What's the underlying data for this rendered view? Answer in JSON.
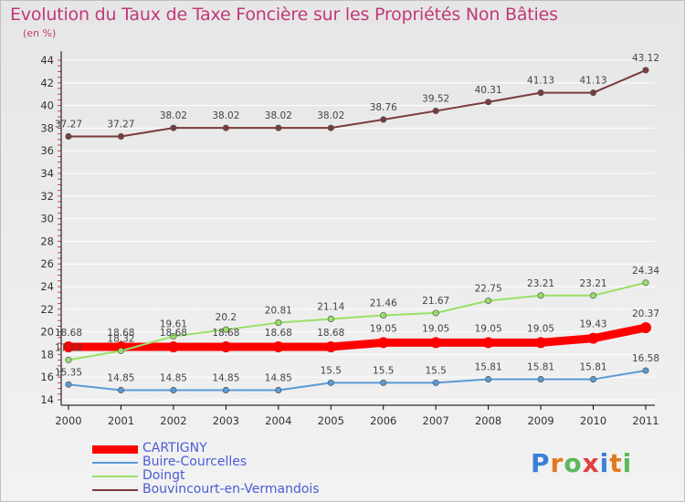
{
  "title": "Evolution du Taux de Taxe Foncière sur les Propriétés Non Bâties",
  "unit": "(en %)",
  "logo": "Proxiti",
  "colors": {
    "title": "#c0387a",
    "legend_text": "#4a5cd6",
    "grid": "#ffffff",
    "axis": "#000000"
  },
  "chart_data": {
    "type": "line",
    "title": "Evolution du Taux de Taxe Foncière sur les Propriétés Non Bâties",
    "ylabel": "(en %)",
    "xlabel": "",
    "ylim": [
      14,
      44
    ],
    "yticks": [
      "14",
      "16",
      "18",
      "20",
      "22",
      "24",
      "26",
      "28",
      "30",
      "32",
      "34",
      "36",
      "38",
      "40",
      "42",
      "44"
    ],
    "x": [
      "2000",
      "2001",
      "2002",
      "2003",
      "2004",
      "2005",
      "2006",
      "2007",
      "2008",
      "2009",
      "2010",
      "2011"
    ],
    "grid": "horizontal",
    "legend_position": "bottom-left",
    "series": [
      {
        "name": "CARTIGNY",
        "color": "#ff0000",
        "values": [
          18.68,
          18.68,
          18.68,
          18.68,
          18.68,
          18.68,
          19.05,
          19.05,
          19.05,
          19.05,
          19.43,
          20.37
        ],
        "labels": [
          "18.68",
          "18.68",
          "18.68",
          "18.68",
          "18.68",
          "18.68",
          "19.05",
          "19.05",
          "19.05",
          "19.05",
          "19.43",
          "20.37"
        ]
      },
      {
        "name": "Buire-Courcelles",
        "color": "#5b9bd5",
        "values": [
          15.35,
          14.85,
          14.85,
          14.85,
          14.85,
          15.5,
          15.5,
          15.5,
          15.81,
          15.81,
          15.81,
          16.58
        ],
        "labels": [
          "15.35",
          "14.85",
          "14.85",
          "14.85",
          "14.85",
          "15.5",
          "15.5",
          "15.5",
          "15.81",
          "15.81",
          "15.81",
          "16.58"
        ]
      },
      {
        "name": "Doingt",
        "color": "#99e066",
        "values": [
          17.52,
          18.32,
          19.61,
          20.2,
          20.81,
          21.14,
          21.46,
          21.67,
          22.75,
          23.21,
          23.21,
          24.34
        ],
        "labels": [
          "17.52",
          "18.32",
          "19.61",
          "20.2",
          "20.81",
          "21.14",
          "21.46",
          "21.67",
          "22.75",
          "23.21",
          "23.21",
          "24.34"
        ]
      },
      {
        "name": "Bouvincourt-en-Vermandois",
        "color": "#7a3b3b",
        "values": [
          37.27,
          37.27,
          38.02,
          38.02,
          38.02,
          38.02,
          38.76,
          39.52,
          40.31,
          41.13,
          41.13,
          43.12
        ],
        "labels": [
          "37.27",
          "37.27",
          "38.02",
          "38.02",
          "38.02",
          "38.02",
          "38.76",
          "39.52",
          "40.31",
          "41.13",
          "41.13",
          "43.12"
        ]
      }
    ]
  }
}
